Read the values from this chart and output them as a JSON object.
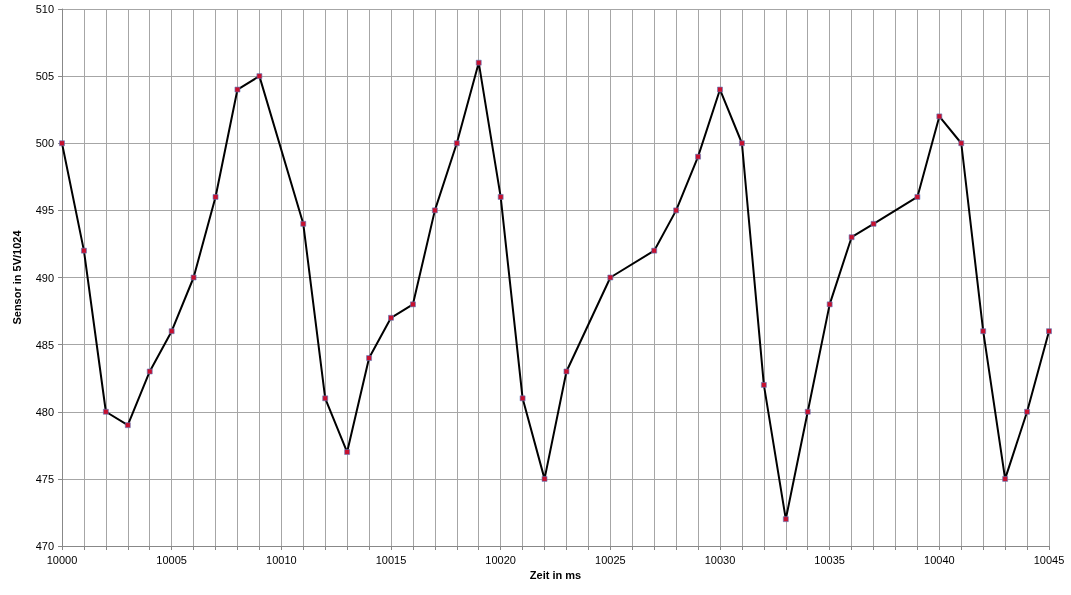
{
  "chart_data": {
    "type": "line",
    "xlabel": "Zeit in ms",
    "ylabel": "Sensor in 5V/1024",
    "x": [
      10000,
      10001,
      10002,
      10003,
      10004,
      10005,
      10006,
      10007,
      10008,
      10009,
      10011,
      10012,
      10013,
      10014,
      10015,
      10016,
      10017,
      10018,
      10019,
      10020,
      10021,
      10022,
      10023,
      10025,
      10027,
      10028,
      10029,
      10030,
      10031,
      10032,
      10033,
      10034,
      10035,
      10036,
      10037,
      10039,
      10040,
      10041,
      10042,
      10043,
      10044,
      10045
    ],
    "series": [
      {
        "color": "#000000",
        "values": [
          500,
          492,
          480,
          479,
          483,
          486,
          490,
          496,
          504,
          505,
          494,
          481,
          477,
          484,
          487,
          488,
          495,
          500,
          506,
          496,
          481,
          475,
          483,
          490,
          492,
          495,
          499,
          504,
          500,
          482,
          472,
          480,
          488,
          493,
          494,
          496,
          502,
          500,
          486,
          475,
          480,
          486
        ]
      }
    ],
    "marker": "square",
    "line_style": "solid",
    "grid": true,
    "xlim": [
      10000,
      10045
    ],
    "xticks": [
      10000,
      {
        "value": 10001,
        "label": null
      },
      {
        "value": 10002,
        "label": null
      },
      {
        "value": 10003,
        "label": null
      },
      {
        "value": 10004,
        "label": null
      },
      10005,
      {
        "value": 10006,
        "label": null
      },
      {
        "value": 10007,
        "label": null
      },
      {
        "value": 10008,
        "label": null
      },
      {
        "value": 10009,
        "label": null
      },
      10010,
      {
        "value": 10011,
        "label": null
      },
      {
        "value": 10012,
        "label": null
      },
      {
        "value": 10013,
        "label": null
      },
      {
        "value": 10014,
        "label": null
      },
      10015,
      {
        "value": 10016,
        "label": null
      },
      {
        "value": 10017,
        "label": null
      },
      {
        "value": 10018,
        "label": null
      },
      {
        "value": 10019,
        "label": null
      },
      10020,
      {
        "value": 10021,
        "label": null
      },
      {
        "value": 10022,
        "label": null
      },
      {
        "value": 10023,
        "label": null
      },
      {
        "value": 10024,
        "label": null
      },
      10025,
      {
        "value": 10026,
        "label": null
      },
      {
        "value": 10027,
        "label": null
      },
      {
        "value": 10028,
        "label": null
      },
      {
        "value": 10029,
        "label": null
      },
      10030,
      {
        "value": 10031,
        "label": null
      },
      {
        "value": 10032,
        "label": null
      },
      {
        "value": 10033,
        "label": null
      },
      {
        "value": 10034,
        "label": null
      },
      10035,
      {
        "value": 10036,
        "label": null
      },
      {
        "value": 10037,
        "label": null
      },
      {
        "value": 10038,
        "label": null
      },
      {
        "value": 10039,
        "label": null
      },
      10040,
      {
        "value": 10041,
        "label": null
      },
      {
        "value": 10042,
        "label": null
      },
      {
        "value": 10043,
        "label": null
      },
      {
        "value": 10044,
        "label": null
      },
      10045
    ],
    "ylim": [
      470,
      510
    ],
    "yticks": [
      470,
      475,
      480,
      485,
      490,
      495,
      500,
      505,
      510
    ]
  }
}
